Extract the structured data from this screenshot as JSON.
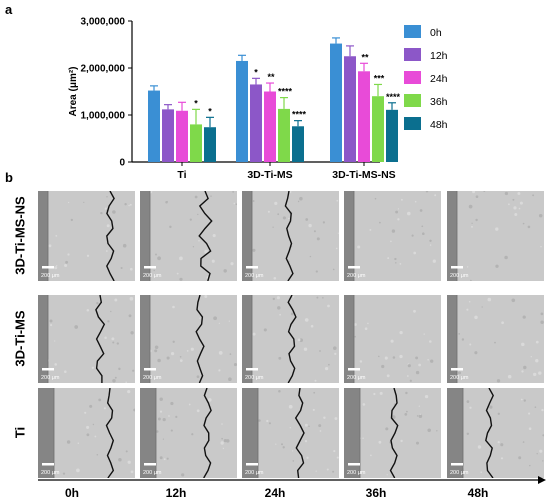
{
  "panel_a_label": "a",
  "panel_b_label": "b",
  "chart_data": {
    "type": "bar",
    "categories": [
      "Ti",
      "3D-Ti-MS",
      "3D-Ti-MS-NS"
    ],
    "ylabel": "Area (μm²)",
    "xlabel": "",
    "ylim": [
      0,
      3000000
    ],
    "yticks": [
      "0",
      "1,000,000",
      "2,000,000",
      "3,000,000"
    ],
    "legend_position": "right",
    "series": [
      {
        "name": "0h",
        "color": "#3a8fd4",
        "values": [
          1520000,
          2150000,
          2520000
        ],
        "errors": [
          100000,
          120000,
          120000
        ],
        "sig": [
          "",
          "",
          ""
        ]
      },
      {
        "name": "12h",
        "color": "#8c57c8",
        "values": [
          1120000,
          1650000,
          2250000
        ],
        "errors": [
          100000,
          130000,
          220000
        ],
        "sig": [
          "",
          "*",
          ""
        ]
      },
      {
        "name": "24h",
        "color": "#e84bd8",
        "values": [
          1090000,
          1500000,
          1930000
        ],
        "errors": [
          180000,
          180000,
          170000
        ],
        "sig": [
          "",
          "**",
          "**"
        ]
      },
      {
        "name": "36h",
        "color": "#7fd94a",
        "values": [
          800000,
          1130000,
          1400000
        ],
        "errors": [
          320000,
          240000,
          250000
        ],
        "sig": [
          "*",
          "****",
          "***"
        ]
      },
      {
        "name": "48h",
        "color": "#0b6f8f",
        "values": [
          740000,
          760000,
          1110000
        ],
        "errors": [
          210000,
          120000,
          150000
        ],
        "sig": [
          "*",
          "****",
          "****"
        ]
      }
    ]
  },
  "rows": [
    {
      "label": "3D-Ti-MS-NS"
    },
    {
      "label": "3D-Ti-MS"
    },
    {
      "label": "Ti"
    }
  ],
  "scale_bar_text": "200 μm",
  "timepoints": [
    "0h",
    "12h",
    "24h",
    "36h",
    "48h"
  ]
}
